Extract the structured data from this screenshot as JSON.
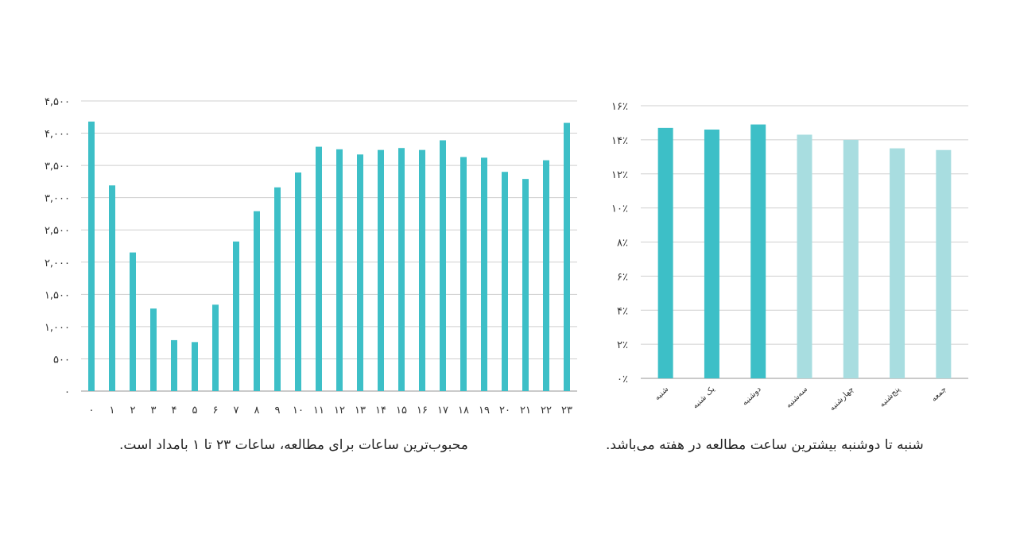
{
  "colors": {
    "bar": "#3dbfc7",
    "bar_light": "#a8dde0",
    "grid": "#cfcfcf",
    "axis": "#b8b8b8"
  },
  "captions": {
    "hourly": "محبوب‌ترین ساعات برای مطالعه، ساعات ۲۳ تا ۱ بامداد است.",
    "weekly": "شنبه تا دوشنبه بیشترین  ساعت مطالعه در هفته می‌باشد."
  },
  "chart_data": [
    {
      "type": "bar",
      "ylim": [
        0,
        4500
      ],
      "yticks": [
        {
          "value": 0,
          "label": "۰"
        },
        {
          "value": 500,
          "label": "۵۰۰"
        },
        {
          "value": 1000,
          "label": "۱,۰۰۰"
        },
        {
          "value": 1500,
          "label": "۱,۵۰۰"
        },
        {
          "value": 2000,
          "label": "۲,۰۰۰"
        },
        {
          "value": 2500,
          "label": "۲,۵۰۰"
        },
        {
          "value": 3000,
          "label": "۳,۰۰۰"
        },
        {
          "value": 3500,
          "label": "۳,۵۰۰"
        },
        {
          "value": 4000,
          "label": "۴,۰۰۰"
        },
        {
          "value": 4500,
          "label": "۴,۵۰۰"
        }
      ],
      "categories": [
        "۰",
        "۱",
        "۲",
        "۳",
        "۴",
        "۵",
        "۶",
        "۷",
        "۸",
        "۹",
        "۱۰",
        "۱۱",
        "۱۲",
        "۱۳",
        "۱۴",
        "۱۵",
        "۱۶",
        "۱۷",
        "۱۸",
        "۱۹",
        "۲۰",
        "۲۱",
        "۲۲",
        "۲۳"
      ],
      "values": [
        4180,
        3190,
        2150,
        1280,
        790,
        760,
        1340,
        2320,
        2790,
        3160,
        3390,
        3790,
        3750,
        3670,
        3740,
        3770,
        3740,
        3890,
        3630,
        3620,
        3400,
        3290,
        3580,
        4160
      ],
      "grid": true
    },
    {
      "type": "bar",
      "ylim": [
        0,
        16
      ],
      "yticks": [
        {
          "value": 0,
          "label": "۰٪"
        },
        {
          "value": 2,
          "label": "۲٪"
        },
        {
          "value": 4,
          "label": "۴٪"
        },
        {
          "value": 6,
          "label": "۶٪"
        },
        {
          "value": 8,
          "label": "۸٪"
        },
        {
          "value": 10,
          "label": "۱۰٪"
        },
        {
          "value": 12,
          "label": "۱۲٪"
        },
        {
          "value": 14,
          "label": "۱۴٪"
        },
        {
          "value": 16,
          "label": "۱۶٪"
        }
      ],
      "categories": [
        "شنبه",
        "یک شنبه",
        "دوشنبه",
        "سه‌شنبه",
        "چهارشنبه",
        "پنج‌شنبه",
        "جمعه"
      ],
      "values": [
        14.7,
        14.6,
        14.9,
        14.3,
        14.0,
        13.5,
        13.4
      ],
      "highlight": [
        true,
        true,
        true,
        false,
        false,
        false,
        false
      ],
      "grid": true
    }
  ]
}
